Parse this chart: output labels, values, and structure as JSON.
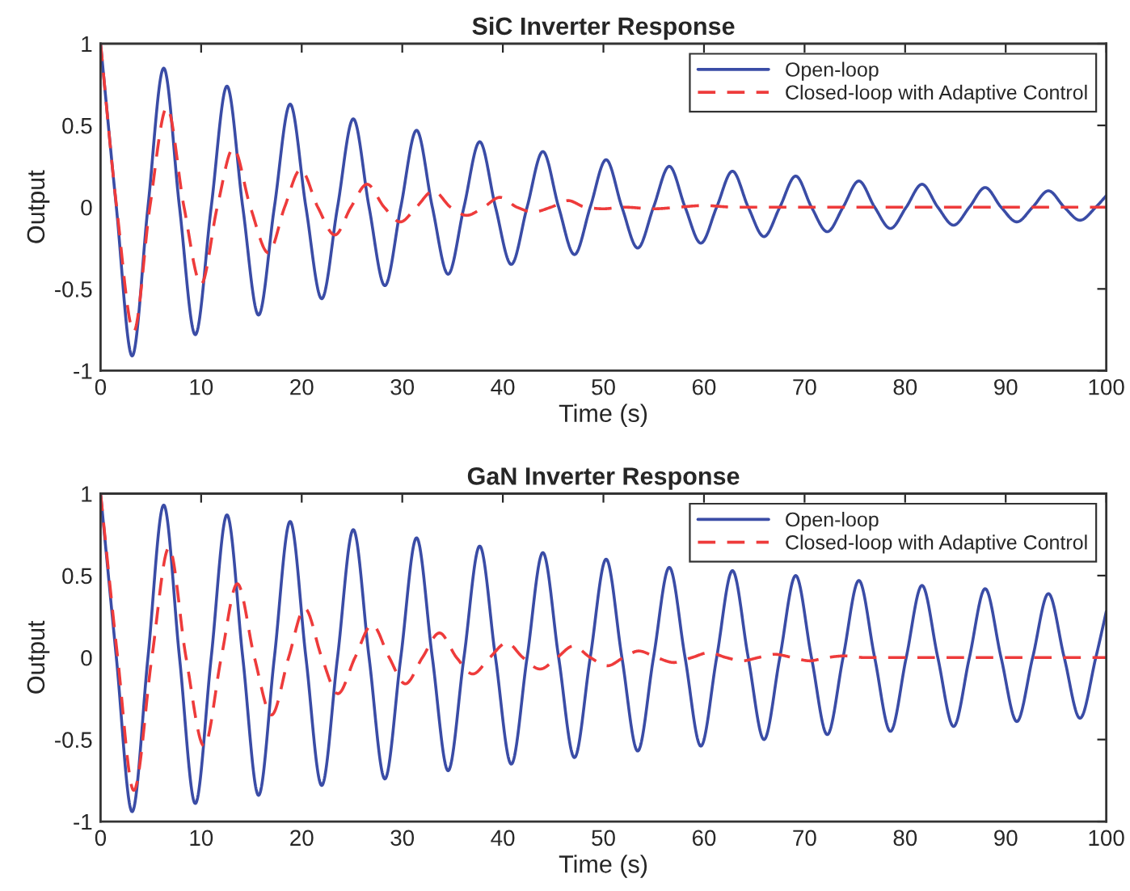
{
  "chart_data": [
    {
      "type": "line",
      "title": "SiC Inverter Response",
      "xlabel": "Time (s)",
      "ylabel": "Output",
      "xlim": [
        0,
        100
      ],
      "ylim": [
        -1,
        1
      ],
      "xticks": [
        0,
        10,
        20,
        30,
        40,
        50,
        60,
        70,
        80,
        90,
        100
      ],
      "yticks": [
        -1,
        -0.5,
        0,
        0.5,
        1
      ],
      "legend": "top right",
      "series": [
        {
          "name": "Open-loop",
          "color": "#3a4ca6",
          "line_style": "solid",
          "x": [
            0,
            1.57,
            3.14,
            4.71,
            6.28,
            7.85,
            9.42,
            11,
            12.57,
            14.14,
            15.71,
            17.28,
            18.85,
            20.42,
            21.99,
            23.56,
            25.13,
            26.7,
            28.27,
            29.85,
            31.42,
            32.99,
            34.56,
            36.13,
            37.7,
            39.27,
            40.84,
            42.41,
            43.98,
            45.55,
            47.12,
            48.69,
            50.27,
            51.84,
            53.41,
            54.98,
            56.55,
            58.12,
            59.69,
            61.26,
            62.83,
            64.4,
            65.97,
            67.54,
            69.12,
            70.69,
            72.26,
            73.83,
            75.4,
            76.97,
            78.54,
            80.11,
            81.68,
            83.25,
            84.82,
            86.39,
            87.96,
            89.54,
            91.11,
            92.68,
            94.25,
            95.82,
            97.39,
            98.96,
            100
          ],
          "values": [
            1,
            0,
            -0.91,
            0,
            0.85,
            0,
            -0.78,
            0,
            0.74,
            0,
            -0.66,
            0,
            0.63,
            0,
            -0.56,
            0,
            0.54,
            0,
            -0.48,
            0,
            0.47,
            0,
            -0.41,
            0,
            0.4,
            0,
            -0.35,
            0,
            0.34,
            0,
            -0.29,
            0,
            0.29,
            0,
            -0.25,
            0,
            0.25,
            0,
            -0.22,
            0,
            0.22,
            0,
            -0.18,
            0,
            0.19,
            0,
            -0.15,
            0,
            0.16,
            0,
            -0.13,
            0,
            0.14,
            0,
            -0.11,
            0,
            0.12,
            0,
            -0.09,
            0,
            0.1,
            0,
            -0.08,
            0,
            0.07
          ]
        },
        {
          "name": "Closed-loop with Adaptive Control",
          "color": "#ee3b3b",
          "line_style": "dashed",
          "x": [
            0,
            1.6,
            3.3,
            4.9,
            6.6,
            8.3,
            10,
            11.6,
            13.2,
            14.9,
            16.7,
            18.3,
            19.9,
            21.6,
            23.3,
            24.9,
            26.5,
            28.2,
            29.8,
            31.4,
            33.1,
            34.8,
            36.4,
            38.1,
            39.7,
            41.4,
            43,
            44.8,
            46.5,
            48.2,
            50,
            52,
            55,
            57.5,
            60,
            63,
            100
          ],
          "values": [
            1,
            0,
            -0.76,
            0,
            0.61,
            0,
            -0.47,
            0,
            0.36,
            0,
            -0.28,
            0,
            0.23,
            0,
            -0.17,
            0,
            0.14,
            0,
            -0.09,
            0,
            0.1,
            0,
            -0.05,
            0,
            0.06,
            0,
            -0.03,
            0,
            0.04,
            0,
            -0.01,
            0,
            -0.01,
            0,
            0.01,
            0,
            0
          ]
        }
      ]
    },
    {
      "type": "line",
      "title": "GaN Inverter Response",
      "xlabel": "Time (s)",
      "ylabel": "Output",
      "xlim": [
        0,
        100
      ],
      "ylim": [
        -1,
        1
      ],
      "xticks": [
        0,
        10,
        20,
        30,
        40,
        50,
        60,
        70,
        80,
        90,
        100
      ],
      "yticks": [
        -1,
        -0.5,
        0,
        0.5,
        1
      ],
      "legend": "top right",
      "series": [
        {
          "name": "Open-loop",
          "color": "#3a4ca6",
          "line_style": "solid",
          "x": [
            0,
            1.57,
            3.14,
            4.71,
            6.28,
            7.85,
            9.42,
            11,
            12.57,
            14.14,
            15.71,
            17.28,
            18.85,
            20.42,
            21.99,
            23.56,
            25.13,
            26.7,
            28.27,
            29.85,
            31.42,
            32.99,
            34.56,
            36.13,
            37.7,
            39.27,
            40.84,
            42.41,
            43.98,
            45.55,
            47.12,
            48.69,
            50.27,
            51.84,
            53.41,
            54.98,
            56.55,
            58.12,
            59.69,
            61.26,
            62.83,
            64.4,
            65.97,
            67.54,
            69.12,
            70.69,
            72.26,
            73.83,
            75.4,
            76.97,
            78.54,
            80.11,
            81.68,
            83.25,
            84.82,
            86.39,
            87.96,
            89.54,
            91.11,
            92.68,
            94.25,
            95.82,
            97.39,
            98.96,
            100
          ],
          "values": [
            1,
            0,
            -0.94,
            0,
            0.93,
            0,
            -0.89,
            0,
            0.87,
            0,
            -0.84,
            0,
            0.83,
            0,
            -0.78,
            0,
            0.78,
            0,
            -0.74,
            0,
            0.73,
            0,
            -0.69,
            0,
            0.68,
            0,
            -0.65,
            0,
            0.64,
            0,
            -0.61,
            0,
            0.6,
            0,
            -0.57,
            0,
            0.55,
            0,
            -0.54,
            0,
            0.53,
            0,
            -0.5,
            0,
            0.5,
            0,
            -0.47,
            0,
            0.47,
            0,
            -0.45,
            0,
            0.44,
            0,
            -0.42,
            0,
            0.42,
            0,
            -0.39,
            0,
            0.39,
            0,
            -0.37,
            0,
            0.28
          ]
        },
        {
          "name": "Closed-loop with Adaptive Control",
          "color": "#ee3b3b",
          "line_style": "dashed",
          "x": [
            0,
            1.7,
            3.3,
            5.1,
            6.8,
            8.5,
            10.3,
            12,
            13.6,
            15.3,
            17,
            18.7,
            20.3,
            22,
            23.6,
            25.3,
            27,
            28.7,
            30.3,
            32,
            33.7,
            35.4,
            37,
            38.7,
            40.4,
            42,
            43.7,
            45.4,
            47,
            48.7,
            50.4,
            52,
            53.5,
            55.3,
            57,
            58.8,
            60.5,
            62.2,
            63.8,
            65.4,
            67,
            68.8,
            70.5,
            72.2,
            74,
            76,
            100
          ],
          "values": [
            1,
            0,
            -0.81,
            0,
            0.67,
            0,
            -0.54,
            0,
            0.45,
            0,
            -0.35,
            0,
            0.3,
            0,
            -0.22,
            0,
            0.2,
            0,
            -0.16,
            0,
            0.15,
            0,
            -0.1,
            0,
            0.09,
            0,
            -0.07,
            0,
            0.07,
            0,
            -0.05,
            0,
            0.04,
            0,
            -0.03,
            0,
            0.03,
            0,
            -0.02,
            0,
            0.02,
            0,
            -0.02,
            0,
            0.01,
            0,
            0
          ]
        }
      ]
    }
  ]
}
